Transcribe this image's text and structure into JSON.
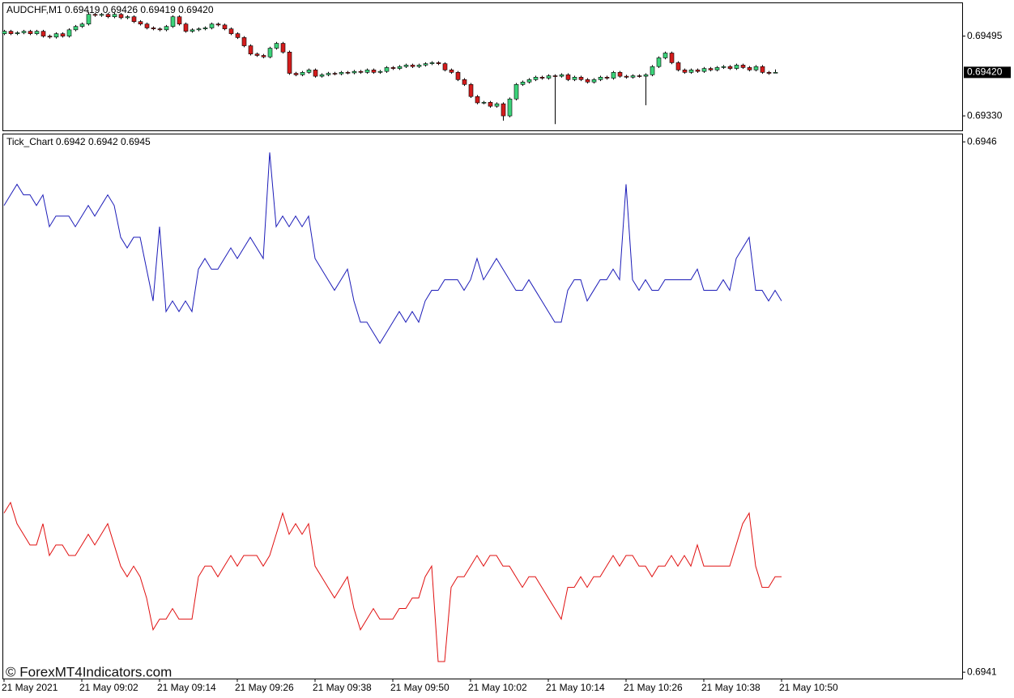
{
  "watermark": "© ForexMT4Indicators.com",
  "chart_data": [
    {
      "type": "candlestick",
      "title": "AUDCHF,M1  0.69419 0.69426 0.69419 0.69420",
      "up_color": "#3cd37a",
      "down_color": "#d41c1c",
      "ylim": [
        0.693,
        0.69563
      ],
      "yticks": [
        0.69495,
        {
          "value": 0.6933,
          "label": "0.69330"
        }
      ],
      "last_price": {
        "value": 0.6942,
        "label": "0.69420"
      },
      "ohlc": [
        [
          0.695,
          0.69508,
          0.69497,
          0.69505
        ],
        [
          0.69505,
          0.69508,
          0.69497,
          0.695
        ],
        [
          0.695,
          0.69505,
          0.69497,
          0.69502
        ],
        [
          0.69502,
          0.69508,
          0.69499,
          0.69505
        ],
        [
          0.69505,
          0.69508,
          0.69497,
          0.695
        ],
        [
          0.695,
          0.69508,
          0.69497,
          0.69505
        ],
        [
          0.69505,
          0.69508,
          0.69492,
          0.69495
        ],
        [
          0.69495,
          0.69498,
          0.6949,
          0.69493
        ],
        [
          0.69493,
          0.69503,
          0.6949,
          0.695
        ],
        [
          0.695,
          0.69503,
          0.69492,
          0.69495
        ],
        [
          0.69495,
          0.69511,
          0.69492,
          0.69508
        ],
        [
          0.69508,
          0.69518,
          0.69505,
          0.69515
        ],
        [
          0.69515,
          0.69523,
          0.69512,
          0.6952
        ],
        [
          0.6952,
          0.69545,
          0.69517,
          0.6954
        ],
        [
          0.6954,
          0.69543,
          0.69535,
          0.69538
        ],
        [
          0.69538,
          0.69543,
          0.69535,
          0.6954
        ],
        [
          0.6954,
          0.69543,
          0.69532,
          0.69535
        ],
        [
          0.69535,
          0.69543,
          0.69532,
          0.6954
        ],
        [
          0.6954,
          0.69543,
          0.6953,
          0.69533
        ],
        [
          0.69533,
          0.69538,
          0.6953,
          0.69535
        ],
        [
          0.69535,
          0.69538,
          0.69522,
          0.69525
        ],
        [
          0.69525,
          0.69528,
          0.69517,
          0.6952
        ],
        [
          0.6952,
          0.69523,
          0.69509,
          0.69512
        ],
        [
          0.69512,
          0.69515,
          0.69507,
          0.6951
        ],
        [
          0.6951,
          0.69513,
          0.69505,
          0.69508
        ],
        [
          0.69508,
          0.69518,
          0.69505,
          0.69515
        ],
        [
          0.69515,
          0.69538,
          0.69512,
          0.69535
        ],
        [
          0.69535,
          0.69538,
          0.69517,
          0.6952
        ],
        [
          0.6952,
          0.69523,
          0.69502,
          0.69505
        ],
        [
          0.69505,
          0.69511,
          0.69502,
          0.69508
        ],
        [
          0.69508,
          0.69513,
          0.69505,
          0.6951
        ],
        [
          0.6951,
          0.69515,
          0.69507,
          0.69512
        ],
        [
          0.69512,
          0.69523,
          0.69509,
          0.6952
        ],
        [
          0.6952,
          0.69523,
          0.69515,
          0.69518
        ],
        [
          0.69518,
          0.69521,
          0.69507,
          0.6951
        ],
        [
          0.6951,
          0.69513,
          0.69497,
          0.695
        ],
        [
          0.695,
          0.69503,
          0.69489,
          0.69492
        ],
        [
          0.69492,
          0.69495,
          0.69472,
          0.69475
        ],
        [
          0.69475,
          0.69478,
          0.69455,
          0.69458
        ],
        [
          0.69458,
          0.69461,
          0.69452,
          0.69455
        ],
        [
          0.69455,
          0.69458,
          0.69449,
          0.69452
        ],
        [
          0.69452,
          0.69473,
          0.69449,
          0.6947
        ],
        [
          0.6947,
          0.69483,
          0.69467,
          0.6948
        ],
        [
          0.6948,
          0.69483,
          0.69459,
          0.69462
        ],
        [
          0.69462,
          0.69465,
          0.69415,
          0.69418
        ],
        [
          0.69418,
          0.69421,
          0.69412,
          0.69415
        ],
        [
          0.69415,
          0.69423,
          0.69412,
          0.6942
        ],
        [
          0.6942,
          0.69428,
          0.69417,
          0.69425
        ],
        [
          0.69425,
          0.69428,
          0.69409,
          0.69412
        ],
        [
          0.69412,
          0.69418,
          0.69409,
          0.69415
        ],
        [
          0.69415,
          0.69421,
          0.69412,
          0.69418
        ],
        [
          0.69418,
          0.69421,
          0.69414,
          0.69417
        ],
        [
          0.69417,
          0.69423,
          0.69414,
          0.6942
        ],
        [
          0.6942,
          0.69423,
          0.69416,
          0.69419
        ],
        [
          0.69419,
          0.69425,
          0.69416,
          0.69422
        ],
        [
          0.69422,
          0.69425,
          0.69417,
          0.6942
        ],
        [
          0.6942,
          0.69428,
          0.69417,
          0.69425
        ],
        [
          0.69425,
          0.69428,
          0.69417,
          0.6942
        ],
        [
          0.6942,
          0.69425,
          0.69417,
          0.69422
        ],
        [
          0.69422,
          0.69433,
          0.69419,
          0.6943
        ],
        [
          0.6943,
          0.69433,
          0.69425,
          0.69428
        ],
        [
          0.69428,
          0.69435,
          0.69425,
          0.69432
        ],
        [
          0.69432,
          0.69438,
          0.69429,
          0.69435
        ],
        [
          0.69435,
          0.69438,
          0.69429,
          0.69432
        ],
        [
          0.69432,
          0.69438,
          0.69429,
          0.69435
        ],
        [
          0.69435,
          0.69441,
          0.69432,
          0.69438
        ],
        [
          0.69438,
          0.69443,
          0.69435,
          0.6944
        ],
        [
          0.6944,
          0.69443,
          0.69435,
          0.69438
        ],
        [
          0.69438,
          0.69441,
          0.69422,
          0.69425
        ],
        [
          0.69425,
          0.69428,
          0.69417,
          0.6942
        ],
        [
          0.6942,
          0.69423,
          0.69402,
          0.69405
        ],
        [
          0.69405,
          0.69408,
          0.69392,
          0.69395
        ],
        [
          0.69395,
          0.69398,
          0.69367,
          0.6937
        ],
        [
          0.6937,
          0.69373,
          0.69354,
          0.69357
        ],
        [
          0.69357,
          0.69361,
          0.69354,
          0.69358
        ],
        [
          0.69358,
          0.69361,
          0.69347,
          0.6935
        ],
        [
          0.6935,
          0.69358,
          0.69347,
          0.69355
        ],
        [
          0.69355,
          0.69358,
          0.6932,
          0.6933
        ],
        [
          0.6933,
          0.69368,
          0.69327,
          0.69365
        ],
        [
          0.69365,
          0.69398,
          0.69362,
          0.69395
        ],
        [
          0.69395,
          0.69403,
          0.69392,
          0.694
        ],
        [
          0.694,
          0.69408,
          0.69397,
          0.69405
        ],
        [
          0.69405,
          0.69413,
          0.69402,
          0.6941
        ],
        [
          0.6941,
          0.69413,
          0.69405,
          0.69408
        ],
        [
          0.69408,
          0.69416,
          0.69405,
          0.69413
        ],
        [
          0.69413,
          0.69416,
          0.69313,
          0.69412
        ],
        [
          0.69412,
          0.69418,
          0.69409,
          0.69415
        ],
        [
          0.69415,
          0.69418,
          0.69402,
          0.69405
        ],
        [
          0.69405,
          0.69413,
          0.69402,
          0.6941
        ],
        [
          0.6941,
          0.69413,
          0.69402,
          0.69405
        ],
        [
          0.69405,
          0.69408,
          0.69397,
          0.694
        ],
        [
          0.694,
          0.69408,
          0.69397,
          0.69405
        ],
        [
          0.69405,
          0.69413,
          0.69402,
          0.6941
        ],
        [
          0.6941,
          0.69413,
          0.69405,
          0.69408
        ],
        [
          0.69408,
          0.69423,
          0.69405,
          0.6942
        ],
        [
          0.6942,
          0.69423,
          0.69409,
          0.69412
        ],
        [
          0.69412,
          0.69415,
          0.69407,
          0.6941
        ],
        [
          0.6941,
          0.69416,
          0.69407,
          0.69413
        ],
        [
          0.69413,
          0.69416,
          0.69409,
          0.69412
        ],
        [
          0.69412,
          0.69418,
          0.69352,
          0.69415
        ],
        [
          0.69415,
          0.69435,
          0.69412,
          0.69432
        ],
        [
          0.69432,
          0.69453,
          0.69429,
          0.6945
        ],
        [
          0.6945,
          0.69463,
          0.69447,
          0.6946
        ],
        [
          0.6946,
          0.69463,
          0.69437,
          0.6944
        ],
        [
          0.6944,
          0.69443,
          0.69422,
          0.69425
        ],
        [
          0.69425,
          0.69428,
          0.69417,
          0.6942
        ],
        [
          0.6942,
          0.69428,
          0.69417,
          0.69425
        ],
        [
          0.69425,
          0.69428,
          0.69419,
          0.69422
        ],
        [
          0.69422,
          0.69431,
          0.69419,
          0.69428
        ],
        [
          0.69428,
          0.69431,
          0.69422,
          0.69425
        ],
        [
          0.69425,
          0.69433,
          0.69422,
          0.6943
        ],
        [
          0.6943,
          0.69435,
          0.69427,
          0.69432
        ],
        [
          0.69432,
          0.69435,
          0.69425,
          0.69428
        ],
        [
          0.69428,
          0.69438,
          0.69425,
          0.69435
        ],
        [
          0.69435,
          0.69438,
          0.69427,
          0.6943
        ],
        [
          0.6943,
          0.69433,
          0.69422,
          0.69425
        ],
        [
          0.69425,
          0.69435,
          0.69422,
          0.69432
        ],
        [
          0.69432,
          0.69435,
          0.69417,
          0.6942
        ],
        [
          0.6942,
          0.69423,
          0.69415,
          0.69418
        ],
        [
          0.69419,
          0.69426,
          0.69419,
          0.6942
        ]
      ]
    },
    {
      "type": "line",
      "title": "Tick_Chart 0.6942 0.6942 0.6945",
      "ylim": [
        0.694094,
        0.694607
      ],
      "yticks": [
        0.6946,
        0.6941
      ],
      "xticks": [
        {
          "value": 0,
          "label": "21 May 2021"
        },
        {
          "value": 12,
          "label": "21 May 09:02"
        },
        {
          "value": 24,
          "label": "21 May 09:14"
        },
        {
          "value": 36,
          "label": "21 May 09:26"
        },
        {
          "value": 48,
          "label": "21 May 09:38"
        },
        {
          "value": 60,
          "label": "21 May 09:50"
        },
        {
          "value": 72,
          "label": "21 May 10:02"
        },
        {
          "value": 84,
          "label": "21 May 10:14"
        },
        {
          "value": 96,
          "label": "21 May 10:26"
        },
        {
          "value": 108,
          "label": "21 May 10:38"
        },
        {
          "value": 120,
          "label": "21 May 10:50"
        }
      ],
      "series": [
        {
          "color": "#1c1cb8",
          "values": [
            0.69454,
            0.69455,
            0.69456,
            0.69455,
            0.69455,
            0.69454,
            0.69455,
            0.69452,
            0.69453,
            0.69453,
            0.69453,
            0.69452,
            0.69453,
            0.69454,
            0.69453,
            0.69454,
            0.69455,
            0.69454,
            0.69451,
            0.6945,
            0.69451,
            0.69451,
            0.69448,
            0.69445,
            0.69452,
            0.69444,
            0.69445,
            0.69444,
            0.69445,
            0.69444,
            0.69448,
            0.69449,
            0.69448,
            0.69448,
            0.69449,
            0.6945,
            0.69449,
            0.6945,
            0.69451,
            0.6945,
            0.69449,
            0.69459,
            0.69452,
            0.69453,
            0.69452,
            0.69453,
            0.69452,
            0.69453,
            0.69449,
            0.69448,
            0.69447,
            0.69446,
            0.69447,
            0.69448,
            0.69445,
            0.69443,
            0.69443,
            0.69442,
            0.69441,
            0.69442,
            0.69443,
            0.69444,
            0.69443,
            0.69444,
            0.69443,
            0.69445,
            0.69446,
            0.69446,
            0.69447,
            0.69447,
            0.69447,
            0.69446,
            0.69447,
            0.69449,
            0.69447,
            0.69448,
            0.69449,
            0.69448,
            0.69447,
            0.69446,
            0.69446,
            0.69447,
            0.69446,
            0.69445,
            0.69444,
            0.69443,
            0.69443,
            0.69446,
            0.69447,
            0.69447,
            0.69445,
            0.69446,
            0.69447,
            0.69447,
            0.69448,
            0.69447,
            0.69456,
            0.69447,
            0.69446,
            0.69447,
            0.69446,
            0.69446,
            0.69447,
            0.69447,
            0.69447,
            0.69447,
            0.69447,
            0.69448,
            0.69446,
            0.69446,
            0.69446,
            0.69447,
            0.69446,
            0.69449,
            0.6945,
            0.69451,
            0.69446,
            0.69446,
            0.69445,
            0.69446,
            0.69445
          ]
        },
        {
          "color": "#e01010",
          "values": [
            0.69425,
            0.69426,
            0.69424,
            0.69423,
            0.69422,
            0.69422,
            0.69424,
            0.69421,
            0.69422,
            0.69422,
            0.69421,
            0.69421,
            0.69422,
            0.69423,
            0.69422,
            0.69423,
            0.69424,
            0.69422,
            0.6942,
            0.69419,
            0.6942,
            0.69419,
            0.69417,
            0.69414,
            0.69415,
            0.69415,
            0.69416,
            0.69415,
            0.69415,
            0.69415,
            0.69419,
            0.6942,
            0.6942,
            0.69419,
            0.6942,
            0.69421,
            0.6942,
            0.69421,
            0.69421,
            0.69421,
            0.6942,
            0.69421,
            0.69423,
            0.69425,
            0.69423,
            0.69424,
            0.69423,
            0.69424,
            0.6942,
            0.69419,
            0.69418,
            0.69417,
            0.69418,
            0.69419,
            0.69416,
            0.69414,
            0.69415,
            0.69416,
            0.69415,
            0.69415,
            0.69415,
            0.69416,
            0.69416,
            0.69417,
            0.69417,
            0.69419,
            0.6942,
            0.69411,
            0.69411,
            0.69418,
            0.69419,
            0.69419,
            0.6942,
            0.69421,
            0.6942,
            0.69421,
            0.69421,
            0.6942,
            0.6942,
            0.69419,
            0.69418,
            0.69419,
            0.69419,
            0.69418,
            0.69417,
            0.69416,
            0.69415,
            0.69418,
            0.69418,
            0.69419,
            0.69418,
            0.69419,
            0.69419,
            0.6942,
            0.69421,
            0.6942,
            0.69421,
            0.69421,
            0.6942,
            0.6942,
            0.69419,
            0.6942,
            0.6942,
            0.69421,
            0.6942,
            0.69421,
            0.6942,
            0.69422,
            0.6942,
            0.6942,
            0.6942,
            0.6942,
            0.6942,
            0.69422,
            0.69424,
            0.69425,
            0.6942,
            0.69418,
            0.69418,
            0.69419,
            0.69419
          ]
        }
      ]
    }
  ]
}
